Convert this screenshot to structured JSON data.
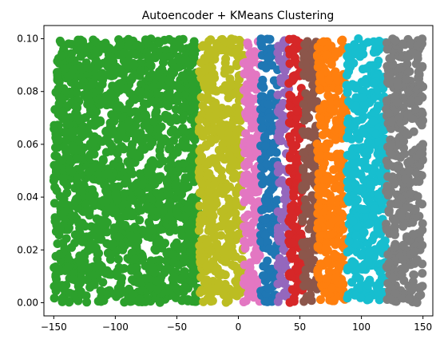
{
  "chart_data": {
    "type": "scatter",
    "title": "Autoencoder + KMeans Clustering",
    "xlabel": "",
    "ylabel": "",
    "xlim": [
      -158,
      158
    ],
    "ylim": [
      -0.005,
      0.105
    ],
    "xticks": [
      -150,
      -100,
      -50,
      0,
      50,
      100,
      150
    ],
    "yticks": [
      0.0,
      0.02,
      0.04,
      0.06,
      0.08,
      0.1
    ],
    "ytick_labels": [
      "0.00",
      "0.02",
      "0.04",
      "0.06",
      "0.08",
      "0.10"
    ],
    "grid": false,
    "legend": "none",
    "y_range_of_points": [
      0.0,
      0.1
    ],
    "clusters": [
      {
        "color": "#2ca02c",
        "x_range": [
          -150,
          -32
        ]
      },
      {
        "color": "#bcbd22",
        "x_range": [
          -32,
          4
        ]
      },
      {
        "color": "#e377c2",
        "x_range": [
          4,
          18
        ]
      },
      {
        "color": "#1f77b4",
        "x_range": [
          18,
          32
        ]
      },
      {
        "color": "#9467bd",
        "x_range": [
          32,
          41
        ]
      },
      {
        "color": "#d62728",
        "x_range": [
          41,
          52
        ]
      },
      {
        "color": "#8c564b",
        "x_range": [
          52,
          64
        ]
      },
      {
        "color": "#ff7f0e",
        "x_range": [
          64,
          88
        ]
      },
      {
        "color": "#17becf",
        "x_range": [
          88,
          120
        ]
      },
      {
        "color": "#7f7f7f",
        "x_range": [
          120,
          150
        ]
      }
    ]
  }
}
